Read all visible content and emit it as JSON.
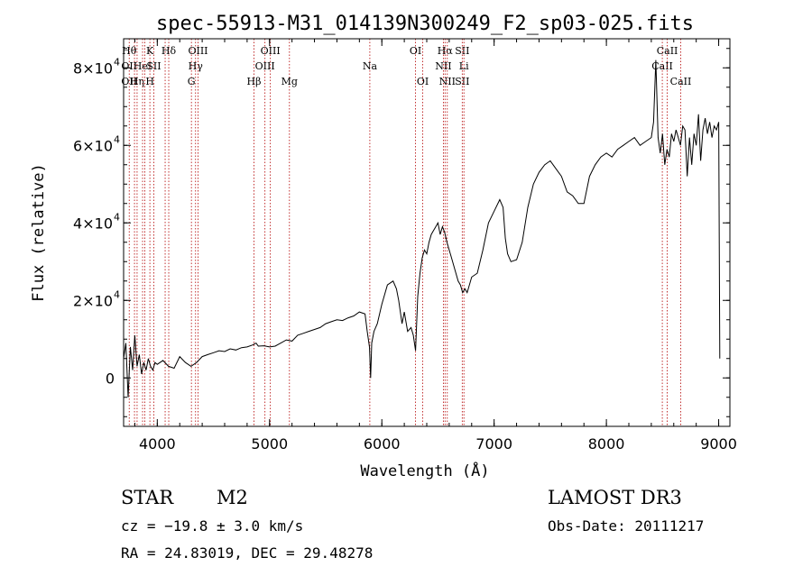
{
  "chart_data": {
    "type": "line",
    "title": "spec-55913-M31_014139N300249_F2_sp03-025.fits",
    "xlabel": "Wavelength (Å)",
    "ylabel": "Flux (relative)",
    "xlim": [
      3700,
      9100
    ],
    "ylim": [
      -12500,
      87500
    ],
    "x_ticks": [
      4000,
      5000,
      6000,
      7000,
      8000,
      9000
    ],
    "y_ticks": [
      {
        "value": 0,
        "base": "0",
        "exp": ""
      },
      {
        "value": 20000,
        "base": "2×10",
        "exp": "4"
      },
      {
        "value": 40000,
        "base": "4×10",
        "exp": "4"
      },
      {
        "value": 60000,
        "base": "6×10",
        "exp": "4"
      },
      {
        "value": 80000,
        "base": "8×10",
        "exp": "4"
      }
    ],
    "series": [
      {
        "name": "spectrum",
        "color": "#000000",
        "x": [
          3700,
          3720,
          3740,
          3760,
          3780,
          3800,
          3820,
          3840,
          3860,
          3880,
          3900,
          3920,
          3940,
          3960,
          3980,
          4000,
          4050,
          4100,
          4150,
          4200,
          4250,
          4300,
          4350,
          4400,
          4450,
          4500,
          4550,
          4600,
          4650,
          4700,
          4750,
          4800,
          4850,
          4880,
          4900,
          4950,
          5000,
          5050,
          5100,
          5150,
          5200,
          5250,
          5300,
          5350,
          5400,
          5450,
          5500,
          5550,
          5600,
          5650,
          5700,
          5750,
          5800,
          5850,
          5870,
          5890,
          5900,
          5910,
          5930,
          5960,
          6000,
          6050,
          6100,
          6130,
          6150,
          6180,
          6200,
          6230,
          6260,
          6280,
          6300,
          6320,
          6340,
          6360,
          6380,
          6400,
          6420,
          6440,
          6460,
          6480,
          6500,
          6520,
          6540,
          6560,
          6580,
          6600,
          6620,
          6650,
          6680,
          6700,
          6720,
          6740,
          6760,
          6800,
          6850,
          6900,
          6950,
          7000,
          7050,
          7080,
          7100,
          7120,
          7150,
          7200,
          7250,
          7300,
          7350,
          7400,
          7450,
          7500,
          7550,
          7600,
          7650,
          7700,
          7750,
          7800,
          7850,
          7900,
          7950,
          8000,
          8050,
          8100,
          8150,
          8200,
          8250,
          8300,
          8350,
          8400,
          8420,
          8440,
          8460,
          8480,
          8500,
          8520,
          8540,
          8560,
          8580,
          8600,
          8620,
          8640,
          8660,
          8680,
          8700,
          8720,
          8740,
          8760,
          8780,
          8800,
          8820,
          8840,
          8860,
          8880,
          8900,
          8920,
          8940,
          8960,
          8980,
          9000,
          9010
        ],
        "values": [
          5000,
          9000,
          -5000,
          8000,
          2000,
          11000,
          3000,
          6000,
          1000,
          4000,
          2000,
          5000,
          3000,
          2000,
          4000,
          3500,
          4500,
          3000,
          2500,
          5500,
          4000,
          3000,
          4000,
          5500,
          6000,
          6500,
          7000,
          6800,
          7500,
          7200,
          7800,
          8000,
          8500,
          9000,
          8200,
          8300,
          8000,
          8200,
          9000,
          9800,
          9500,
          11000,
          11500,
          12000,
          12500,
          13000,
          14000,
          14500,
          15000,
          14800,
          15500,
          16000,
          17000,
          16500,
          12000,
          8000,
          0,
          9000,
          12000,
          14000,
          19000,
          24000,
          25000,
          23000,
          20000,
          14000,
          17000,
          12000,
          13000,
          11000,
          7000,
          21000,
          27000,
          31000,
          33000,
          32000,
          35000,
          37000,
          38000,
          39000,
          40000,
          37000,
          39000,
          37500,
          35000,
          33000,
          31000,
          28000,
          25000,
          24000,
          22000,
          23000,
          22000,
          26000,
          27000,
          33000,
          40000,
          43000,
          46000,
          44000,
          36000,
          32000,
          30000,
          30500,
          35000,
          44000,
          50000,
          53000,
          55000,
          56000,
          54000,
          52000,
          48000,
          47000,
          45000,
          45000,
          52000,
          55000,
          57000,
          58000,
          57000,
          59000,
          60000,
          61000,
          62000,
          60000,
          61000,
          62000,
          66000,
          82000,
          62000,
          58000,
          63000,
          55000,
          59000,
          57000,
          63000,
          61000,
          64000,
          62000,
          60000,
          65000,
          64000,
          52000,
          62000,
          55000,
          63000,
          60000,
          68000,
          56000,
          64000,
          67000,
          63000,
          66000,
          62000,
          65000,
          64000,
          66000,
          5000
        ]
      }
    ],
    "lines": [
      {
        "x": 3750,
        "top": "Hθ",
        "mid": "OII",
        "low": "OII"
      },
      {
        "x": 3797,
        "top": "",
        "mid": "",
        "low": ""
      },
      {
        "x": 3820,
        "top": "",
        "mid": "",
        "low": "Hη"
      },
      {
        "x": 3869,
        "top": "",
        "mid": "HeI",
        "low": ""
      },
      {
        "x": 3889,
        "top": "",
        "mid": "",
        "low": ""
      },
      {
        "x": 3934,
        "top": "K",
        "mid": "",
        "low": "H"
      },
      {
        "x": 3969,
        "top": "",
        "mid": "SII",
        "low": ""
      },
      {
        "x": 4070,
        "top": "",
        "mid": "",
        "low": ""
      },
      {
        "x": 4102,
        "top": "Hδ",
        "mid": "",
        "low": ""
      },
      {
        "x": 4304,
        "top": "",
        "mid": "",
        "low": "G"
      },
      {
        "x": 4341,
        "top": "",
        "mid": "Hγ",
        "low": ""
      },
      {
        "x": 4363,
        "top": "OIII",
        "mid": "",
        "low": ""
      },
      {
        "x": 4861,
        "top": "",
        "mid": "",
        "low": "Hβ"
      },
      {
        "x": 4959,
        "top": "",
        "mid": "OIII",
        "low": ""
      },
      {
        "x": 5007,
        "top": "OIII",
        "mid": "",
        "low": ""
      },
      {
        "x": 5177,
        "top": "",
        "mid": "",
        "low": "Mg"
      },
      {
        "x": 5893,
        "top": "",
        "mid": "Na",
        "low": ""
      },
      {
        "x": 6300,
        "top": "OI",
        "mid": "",
        "low": ""
      },
      {
        "x": 6364,
        "top": "",
        "mid": "",
        "low": "OI"
      },
      {
        "x": 6548,
        "top": "",
        "mid": "NII",
        "low": ""
      },
      {
        "x": 6563,
        "top": "Hα",
        "mid": "",
        "low": ""
      },
      {
        "x": 6583,
        "top": "",
        "mid": "",
        "low": "NII"
      },
      {
        "x": 6716,
        "top": "SII",
        "mid": "",
        "low": "SII"
      },
      {
        "x": 6731,
        "top": "",
        "mid": "Li",
        "low": ""
      },
      {
        "x": 8498,
        "top": "",
        "mid": "CaII",
        "low": ""
      },
      {
        "x": 8542,
        "top": "CaII",
        "mid": "",
        "low": ""
      },
      {
        "x": 8662,
        "top": "",
        "mid": "",
        "low": "CaII"
      }
    ]
  },
  "info": {
    "class": "STAR",
    "subclass": "M2",
    "cz": "cz = −19.8 ± 3.0 km/s",
    "coords": "RA =  24.83019, DEC =  29.48278",
    "survey": "LAMOST DR3",
    "obs_date": "Obs-Date: 20111217"
  }
}
